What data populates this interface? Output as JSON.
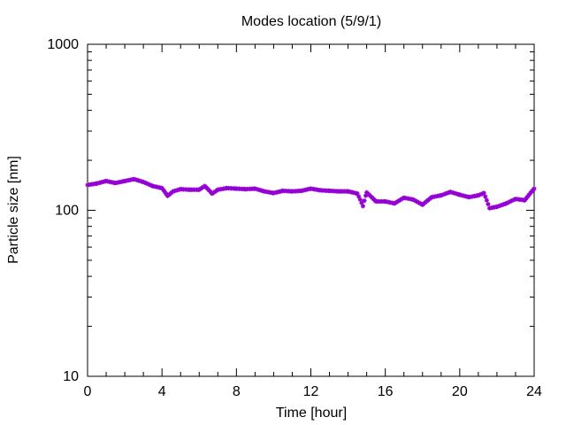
{
  "chart_data": {
    "type": "scatter",
    "title": "Modes location (5/9/1)",
    "xlabel": "Time [hour]",
    "ylabel": "Particle size [nm]",
    "xlim": [
      0,
      24
    ],
    "ylim": [
      10,
      1000
    ],
    "yscale": "log",
    "grid": false,
    "x_ticks": [
      0,
      4,
      8,
      12,
      16,
      20,
      24
    ],
    "x_tick_labels": [
      "0",
      "4",
      "8",
      "12",
      "16",
      "20",
      "24"
    ],
    "y_ticks": [
      10,
      100,
      1000
    ],
    "y_tick_labels": [
      "10",
      "100",
      "1000"
    ],
    "marker": "star",
    "marker_color": "#9400d3",
    "series": [
      {
        "x": [
          0,
          0.5,
          1,
          1.5,
          2,
          2.5,
          3,
          3.5,
          4,
          4.3,
          4.6,
          5,
          5.5,
          6,
          6.3,
          6.7,
          7,
          7.5,
          8,
          8.5,
          9,
          9.5,
          10,
          10.5,
          11,
          11.5,
          12,
          12.5,
          13,
          13.5,
          14,
          14.5,
          14.8,
          15,
          15.5,
          16,
          16.5,
          17,
          17.5,
          18,
          18.5,
          19,
          19.5,
          20,
          20.5,
          21,
          21.3,
          21.6,
          22,
          22.5,
          23,
          23.5,
          24
        ],
        "y": [
          142,
          145,
          150,
          146,
          150,
          154,
          148,
          140,
          136,
          122,
          130,
          134,
          133,
          133,
          140,
          126,
          133,
          136,
          135,
          134,
          135,
          130,
          127,
          131,
          130,
          131,
          135,
          132,
          131,
          130,
          130,
          126,
          106,
          128,
          113,
          113,
          110,
          119,
          116,
          108,
          120,
          123,
          129,
          124,
          120,
          123,
          127,
          103,
          105,
          110,
          117,
          115,
          135
        ]
      }
    ]
  }
}
